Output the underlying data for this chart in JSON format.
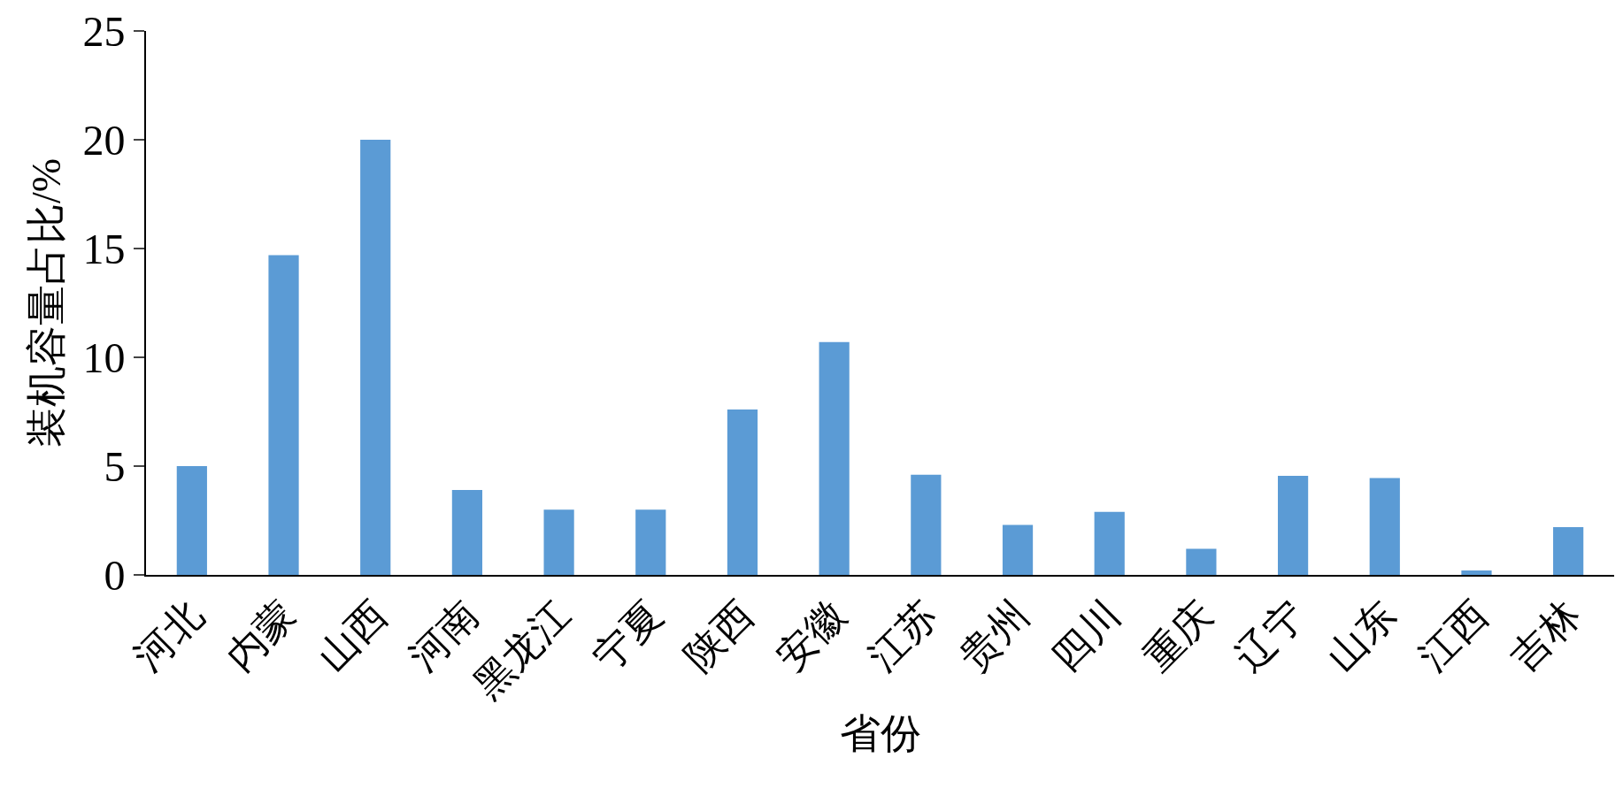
{
  "chart_data": {
    "type": "bar",
    "xlabel": "省份",
    "ylabel": "装机容量占比/%",
    "categories": [
      "河北",
      "内蒙",
      "山西",
      "河南",
      "黑龙江",
      "宁夏",
      "陕西",
      "安徽",
      "江苏",
      "贵州",
      "四川",
      "重庆",
      "辽宁",
      "山东",
      "江西",
      "吉林"
    ],
    "values": [
      5.0,
      14.7,
      20.0,
      3.9,
      3.0,
      3.0,
      7.6,
      10.7,
      4.6,
      2.3,
      2.9,
      1.2,
      4.55,
      4.45,
      0.2,
      2.2
    ],
    "color": "#5b9bd5",
    "ylim": [
      0,
      25
    ],
    "yticks": [
      0,
      5,
      10,
      15,
      20,
      25
    ]
  }
}
